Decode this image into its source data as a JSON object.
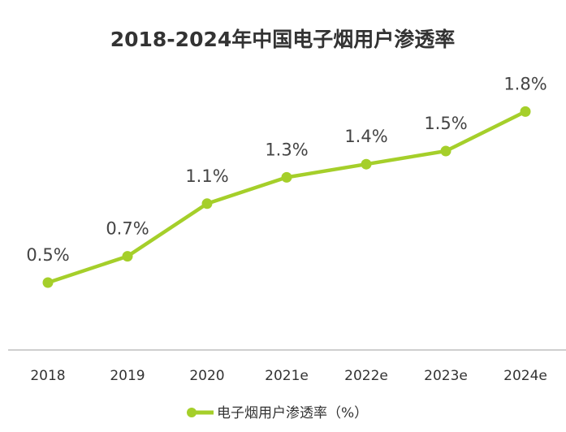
{
  "chart_data": {
    "type": "line",
    "title": "2018-2024年中国电子烟用户渗透率",
    "categories": [
      "2018",
      "2019",
      "2020",
      "2021e",
      "2022e",
      "2023e",
      "2024e"
    ],
    "series": [
      {
        "name": "电子烟用户渗透率（%）",
        "values": [
          0.5,
          0.7,
          1.1,
          1.3,
          1.4,
          1.5,
          1.8
        ],
        "labels": [
          "0.5%",
          "0.7%",
          "1.1%",
          "1.3%",
          "1.4%",
          "1.5%",
          "1.8%"
        ]
      }
    ],
    "xlabel": "",
    "ylabel": "",
    "ylim": [
      -0.0,
      2.0
    ],
    "grid": false,
    "legend": "bottom-center",
    "colors": {
      "line": "#a5cf2a",
      "axis": "#bfbfbf",
      "text": "#333333"
    }
  }
}
